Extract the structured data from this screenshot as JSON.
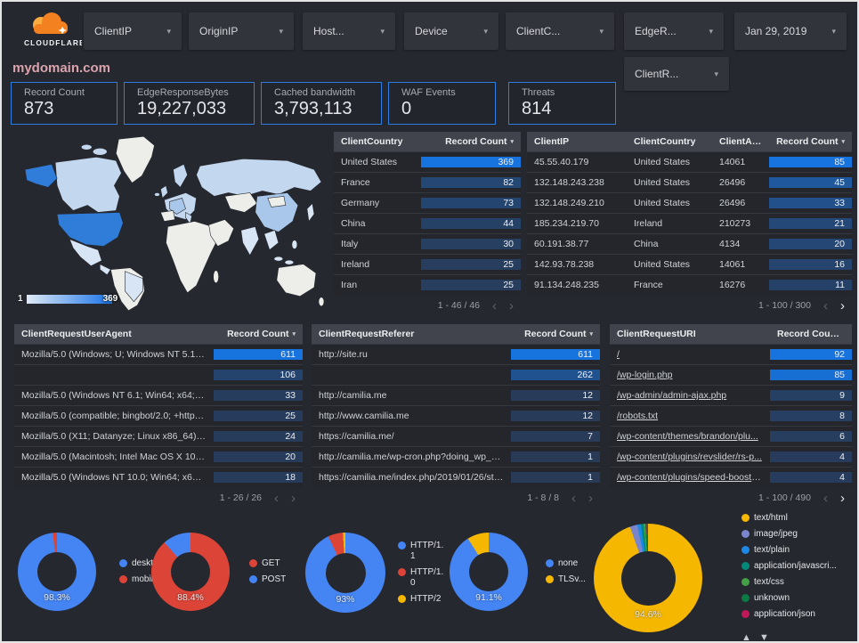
{
  "brand": {
    "logo_text": "CLOUDFLARE",
    "logo_color": "#f48120"
  },
  "header": {
    "title": "mydomain.com",
    "filters": [
      "ClientIP",
      "OriginIP",
      "Host...",
      "Device",
      "ClientC...",
      "EdgeR..."
    ],
    "filters_row2": [
      "ClientR..."
    ],
    "date_label": "Jan 29, 2019"
  },
  "scorecards": [
    {
      "label": "Record Count",
      "value": "873"
    },
    {
      "label": "EdgeResponseBytes",
      "value": "19,227,033"
    },
    {
      "label": "Cached bandwidth",
      "value": "3,793,113"
    },
    {
      "label": "WAF Events",
      "value": "0"
    },
    {
      "label": "Threats",
      "value": "814"
    }
  ],
  "map": {
    "legend_min": "1",
    "legend_max": "369"
  },
  "tables": [
    {
      "name": "client-country-table",
      "columns": [
        "ClientCountry",
        "Record Count"
      ],
      "rows": [
        [
          "United States",
          369
        ],
        [
          "France",
          82
        ],
        [
          "Germany",
          73
        ],
        [
          "China",
          44
        ],
        [
          "Italy",
          30
        ],
        [
          "Ireland",
          25
        ],
        [
          "Iran",
          25
        ]
      ],
      "max": 369,
      "pagination": "1 - 46 / 46",
      "prev_enabled": false,
      "next_enabled": false,
      "links": false
    },
    {
      "name": "client-ip-table",
      "columns": [
        "ClientIP",
        "ClientCountry",
        "ClientASN",
        "Record Count"
      ],
      "rows": [
        [
          "45.55.40.179",
          "United States",
          "14061",
          85
        ],
        [
          "132.148.243.238",
          "United States",
          "26496",
          45
        ],
        [
          "132.148.249.210",
          "United States",
          "26496",
          33
        ],
        [
          "185.234.219.70",
          "Ireland",
          "210273",
          21
        ],
        [
          "60.191.38.77",
          "China",
          "4134",
          20
        ],
        [
          "142.93.78.238",
          "United States",
          "14061",
          16
        ],
        [
          "91.134.248.235",
          "France",
          "16276",
          11
        ]
      ],
      "max": 85,
      "pagination": "1 - 100 / 300",
      "prev_enabled": false,
      "next_enabled": true,
      "links": false
    },
    {
      "name": "client-request-user-agent-table",
      "columns": [
        "ClientRequestUserAgent",
        "Record Count"
      ],
      "rows": [
        [
          "Mozilla/5.0 (Windows; U; Windows NT 5.1; en-U...",
          611
        ],
        [
          "",
          106
        ],
        [
          "Mozilla/5.0 (Windows NT 6.1; Win64; x64; rv:64...",
          33
        ],
        [
          "Mozilla/5.0 (compatible; bingbot/2.0; +http://w...",
          25
        ],
        [
          "Mozilla/5.0 (X11; Datanyze; Linux x86_64) Appl...",
          24
        ],
        [
          "Mozilla/5.0 (Macintosh; Intel Mac OS X 10.11; r...",
          20
        ],
        [
          "Mozilla/5.0 (Windows NT 10.0; Win64; x64) App...",
          18
        ]
      ],
      "max": 611,
      "pagination": "1 - 26 / 26",
      "prev_enabled": false,
      "next_enabled": false,
      "links": false
    },
    {
      "name": "client-request-referer-table",
      "columns": [
        "ClientRequestReferer",
        "Record Count"
      ],
      "rows": [
        [
          "http://site.ru",
          611
        ],
        [
          "",
          262
        ],
        [
          "http://camilia.me",
          12
        ],
        [
          "http://www.camilia.me",
          12
        ],
        [
          "https://camilia.me/",
          7
        ],
        [
          "http://camilia.me/wp-cron.php?doing_wp_cron...",
          1
        ],
        [
          "https://camilia.me/index.php/2019/01/26/stor...",
          1
        ]
      ],
      "max": 611,
      "pagination": "1 - 8 / 8",
      "prev_enabled": false,
      "next_enabled": false,
      "links": false
    },
    {
      "name": "client-request-uri-table",
      "columns": [
        "ClientRequestURI",
        "Record Count"
      ],
      "rows": [
        [
          "/",
          92
        ],
        [
          "/wp-login.php",
          85
        ],
        [
          "/wp-admin/admin-ajax.php",
          9
        ],
        [
          "/robots.txt",
          8
        ],
        [
          "/wp-content/themes/brandon/plu...",
          6
        ],
        [
          "/wp-content/plugins/revslider/rs-p...",
          4
        ],
        [
          "/wp-content/plugins/speed-booste...",
          4
        ]
      ],
      "max": 92,
      "pagination": "1 - 100 / 490",
      "prev_enabled": false,
      "next_enabled": true,
      "links": true
    }
  ],
  "chart_data": [
    {
      "type": "heatmap",
      "subtype": "choropleth-world-map",
      "metric": "Record Count by ClientCountry",
      "min_label": "1",
      "max_label": "369",
      "values": {
        "United States": 369,
        "France": 82,
        "Germany": 73,
        "China": 44,
        "Italy": 30,
        "Ireland": 25,
        "Iran": 25
      }
    },
    {
      "type": "pie",
      "name": "device-type-donut",
      "label": "98.3%",
      "legend_position": "right",
      "slices": [
        {
          "name": "deskt...",
          "value": 98.3,
          "color": "#4484f3"
        },
        {
          "name": "mobile",
          "value": 1.7,
          "color": "#db4437"
        }
      ]
    },
    {
      "type": "pie",
      "name": "http-method-donut",
      "label": "88.4%",
      "legend_position": "right",
      "slices": [
        {
          "name": "GET",
          "value": 88.4,
          "color": "#db4437"
        },
        {
          "name": "POST",
          "value": 11.6,
          "color": "#4484f3"
        }
      ]
    },
    {
      "type": "pie",
      "name": "http-protocol-donut",
      "label": "93%",
      "legend_position": "right",
      "narrow_legend": true,
      "slices": [
        {
          "name": "HTTP/1.1",
          "value": 93,
          "color": "#4484f3"
        },
        {
          "name": "HTTP/1.0",
          "value": 6,
          "color": "#db4437"
        },
        {
          "name": "HTTP/2",
          "value": 1,
          "color": "#f5b700"
        }
      ]
    },
    {
      "type": "pie",
      "name": "tls-version-donut",
      "label": "91.1%",
      "legend_position": "right",
      "slices": [
        {
          "name": "none",
          "value": 91.1,
          "color": "#4484f3"
        },
        {
          "name": "TLSv...",
          "value": 8.9,
          "color": "#f5b700"
        }
      ]
    },
    {
      "type": "pie",
      "name": "content-type-donut",
      "label": "94.6%",
      "legend_position": "right",
      "sort_arrows": "▲ ▼",
      "slices": [
        {
          "name": "text/html",
          "value": 94.6,
          "color": "#f5b700"
        },
        {
          "name": "image/jpeg",
          "value": 2.2,
          "color": "#7986cb"
        },
        {
          "name": "text/plain",
          "value": 1.1,
          "color": "#1e88e5"
        },
        {
          "name": "application/javascri...",
          "value": 0.8,
          "color": "#00897b"
        },
        {
          "name": "text/css",
          "value": 0.5,
          "color": "#43a047"
        },
        {
          "name": "unknown",
          "value": 0.4,
          "color": "#0b7a43"
        },
        {
          "name": "application/json",
          "value": 0.4,
          "color": "#c2185b"
        }
      ]
    }
  ]
}
